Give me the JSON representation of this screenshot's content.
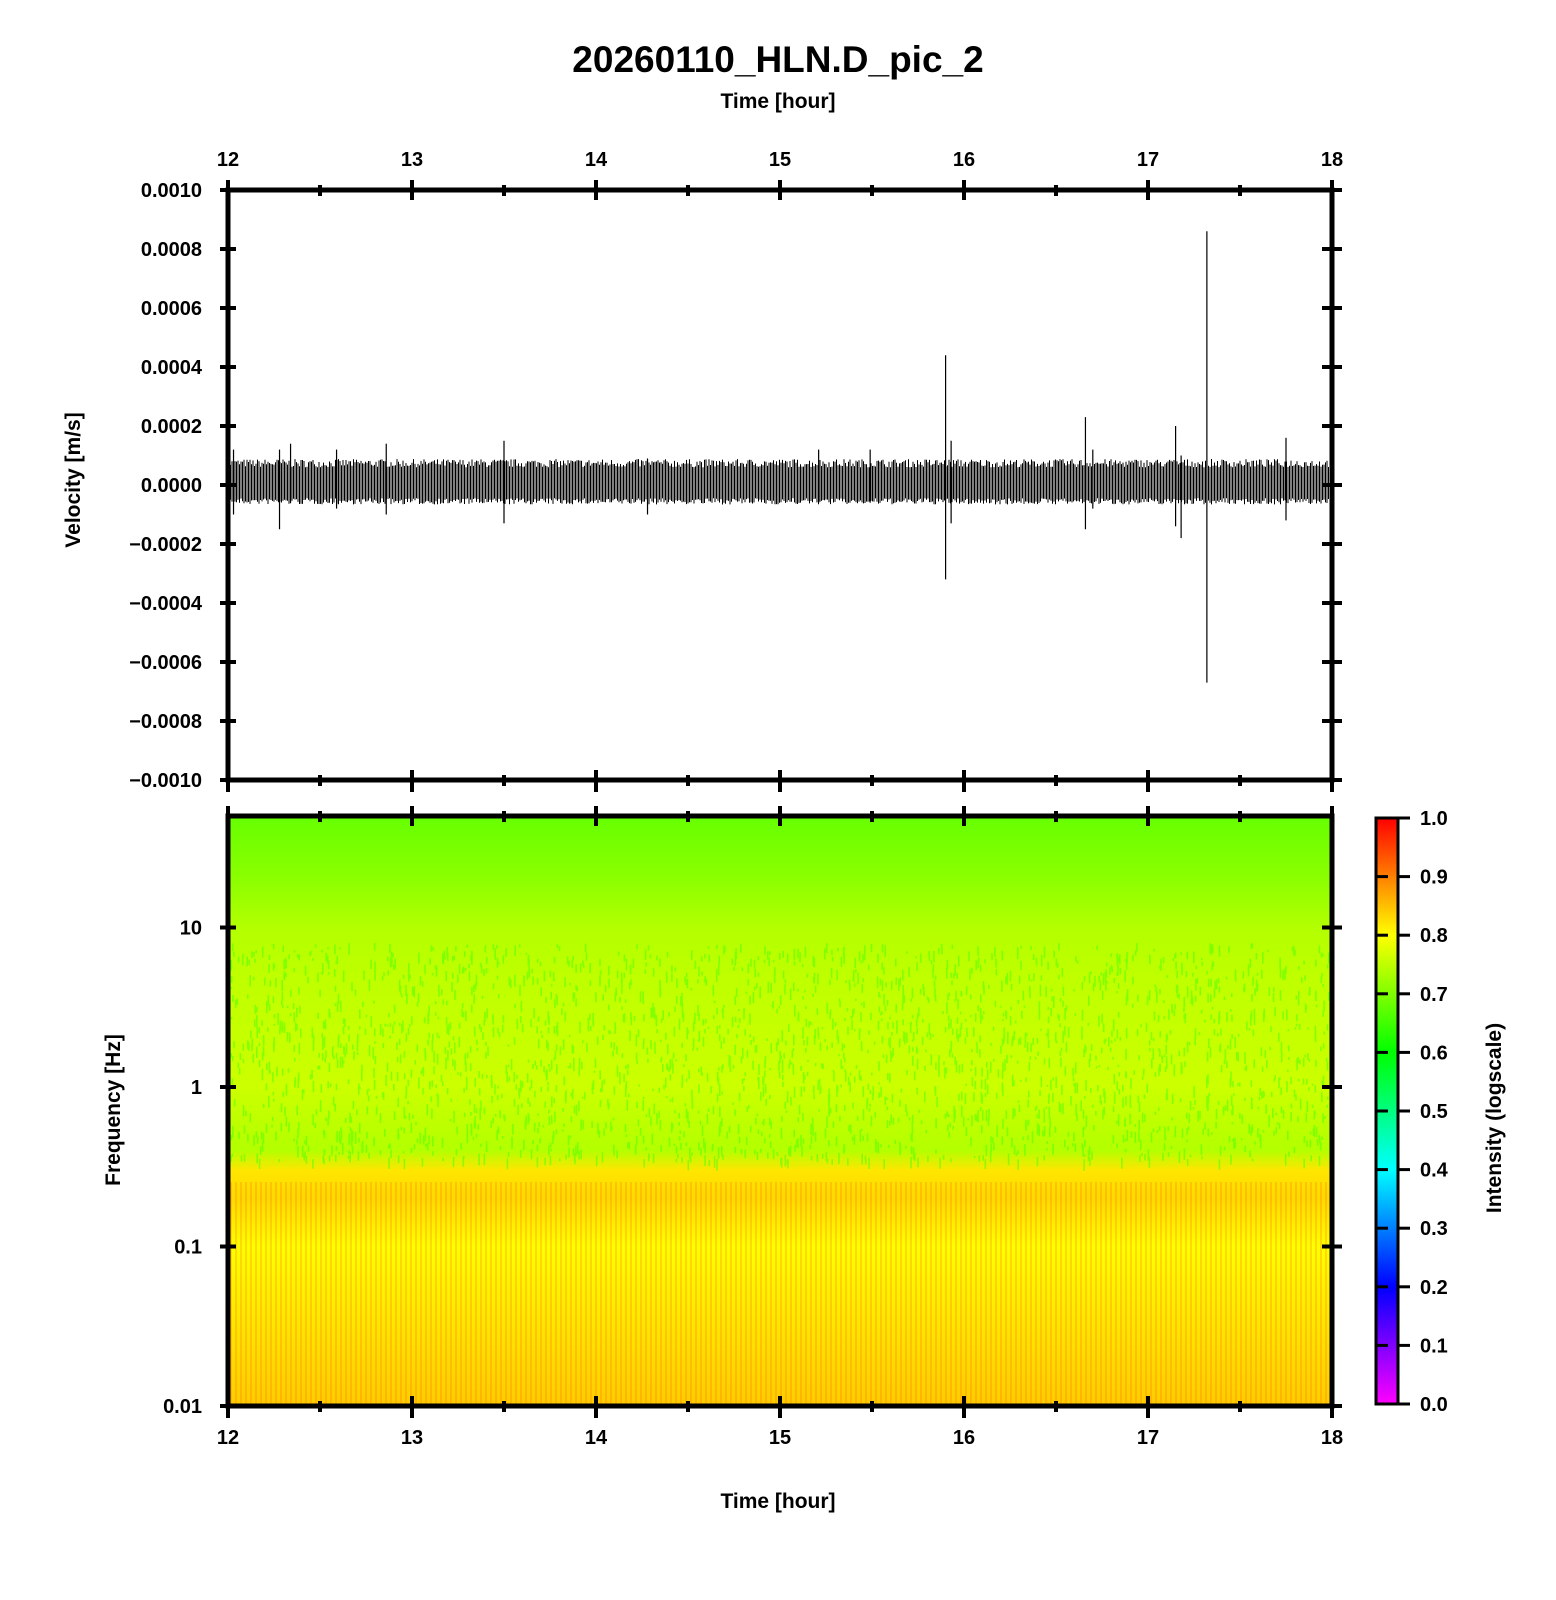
{
  "title": "20260110_HLN.D_pic_2",
  "colors": {
    "trace": "#000000",
    "frame": "#000000",
    "colormap": [
      "#ff00ff",
      "#0000ff",
      "#00ffff",
      "#00ff00",
      "#ffff00",
      "#ff0000"
    ]
  },
  "chart_data": [
    {
      "type": "line",
      "xlabel": "Time [hour]",
      "ylabel": "Velocity [m/s]",
      "xlim": [
        12,
        18
      ],
      "ylim": [
        -0.001,
        0.001
      ],
      "xticks": [
        "12",
        "13",
        "14",
        "15",
        "16",
        "17",
        "18"
      ],
      "yticks": [
        "0.0010",
        "0.0008",
        "0.0006",
        "0.0004",
        "0.0002",
        "0.0000",
        "−0.0002",
        "−0.0004",
        "−0.0006",
        "−0.0008",
        "−0.0010"
      ],
      "noise_band": [
        -6e-05,
        8e-05
      ],
      "spikes": [
        {
          "x": 12.03,
          "max": 0.00012,
          "min": -0.0001
        },
        {
          "x": 12.28,
          "max": 0.00012,
          "min": -0.00015
        },
        {
          "x": 12.34,
          "max": 0.00014,
          "min": -6e-05
        },
        {
          "x": 12.59,
          "max": 0.00012,
          "min": -8e-05
        },
        {
          "x": 12.86,
          "max": 0.00014,
          "min": -0.0001
        },
        {
          "x": 13.5,
          "max": 0.00015,
          "min": -0.00013
        },
        {
          "x": 14.28,
          "max": 9e-05,
          "min": -0.0001
        },
        {
          "x": 15.21,
          "max": 0.00012,
          "min": -6e-05
        },
        {
          "x": 15.49,
          "max": 0.00012,
          "min": -6e-05
        },
        {
          "x": 15.9,
          "max": 0.00044,
          "min": -0.00032
        },
        {
          "x": 15.93,
          "max": 0.00015,
          "min": -0.00013
        },
        {
          "x": 16.66,
          "max": 0.00023,
          "min": -0.00015
        },
        {
          "x": 16.7,
          "max": 0.00012,
          "min": -8e-05
        },
        {
          "x": 17.15,
          "max": 0.0002,
          "min": -0.00014
        },
        {
          "x": 17.18,
          "max": 0.0001,
          "min": -0.00018
        },
        {
          "x": 17.32,
          "max": 0.00086,
          "min": -0.00067
        },
        {
          "x": 17.75,
          "max": 0.00016,
          "min": -0.00012
        }
      ]
    },
    {
      "type": "heatmap",
      "xlabel": "Time [hour]",
      "ylabel": "Frequency [Hz]",
      "xlim": [
        12,
        18
      ],
      "ylim": [
        0.01,
        50
      ],
      "yscale": "log",
      "xticks": [
        "12",
        "13",
        "14",
        "15",
        "16",
        "17",
        "18"
      ],
      "yticks": [
        {
          "value": 10,
          "label": "10"
        },
        {
          "value": 1,
          "label": "1"
        },
        {
          "value": 0.1,
          "label": "0.1"
        },
        {
          "value": 0.01,
          "label": "0.01"
        }
      ],
      "colorbar_label": "Intensity (logscale)",
      "colorbar_range": [
        0.0,
        1.0
      ],
      "colorbar_ticks": [
        "1.0",
        "0.9",
        "0.8",
        "0.7",
        "0.6",
        "0.5",
        "0.4",
        "0.3",
        "0.2",
        "0.1",
        "0.0"
      ],
      "intensity_profile": [
        {
          "freq": 50,
          "intensity": 0.68
        },
        {
          "freq": 20,
          "intensity": 0.71
        },
        {
          "freq": 10,
          "intensity": 0.74
        },
        {
          "freq": 5,
          "intensity": 0.75
        },
        {
          "freq": 1,
          "intensity": 0.76
        },
        {
          "freq": 0.4,
          "intensity": 0.74
        },
        {
          "freq": 0.3,
          "intensity": 0.82
        },
        {
          "freq": 0.2,
          "intensity": 0.83
        },
        {
          "freq": 0.1,
          "intensity": 0.8
        },
        {
          "freq": 0.01,
          "intensity": 0.84
        }
      ]
    }
  ]
}
